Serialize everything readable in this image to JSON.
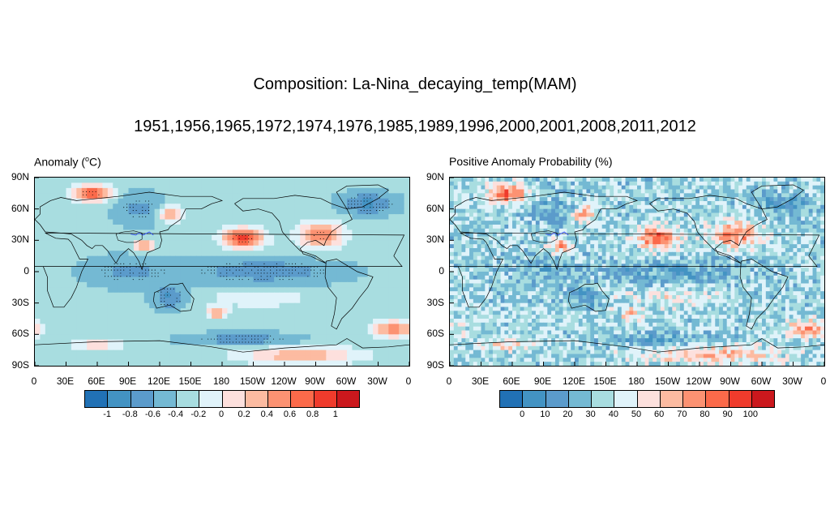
{
  "title": "Composition: La-Nina_decaying_temp(MAM)",
  "years": "1951,1956,1965,1972,1974,1976,1985,1989,1996,2000,2001,2008,2011,2012",
  "lat_labels": [
    "90N",
    "60N",
    "30N",
    "0",
    "30S",
    "60S",
    "90S"
  ],
  "lon_labels": [
    "0",
    "30E",
    "60E",
    "90E",
    "120E",
    "150E",
    "180",
    "150W",
    "120W",
    "90W",
    "60W",
    "30W",
    "0"
  ],
  "palette": [
    "#2171b5",
    "#4393c3",
    "#5b9bcb",
    "#74b9d3",
    "#a8dde0",
    "#e0f3fa",
    "#fde0dd",
    "#fcbba1",
    "#fc9272",
    "#fb6a4a",
    "#ef3b2c",
    "#cb181d"
  ],
  "panels": [
    {
      "id": "anomaly",
      "title": "Anomaly (",
      "title_unit": "C)",
      "title_sup": "o",
      "colorbar_labels": [
        "-1",
        "-0.8",
        "-0.6",
        "-0.4",
        "-0.2",
        "0",
        "0.2",
        "0.4",
        "0.6",
        "0.8",
        "1"
      ]
    },
    {
      "id": "probability",
      "title": "Positive Anomaly Probability (%)",
      "colorbar_labels": [
        "0",
        "10",
        "20",
        "30",
        "40",
        "50",
        "60",
        "70",
        "80",
        "90",
        "100"
      ]
    }
  ]
}
